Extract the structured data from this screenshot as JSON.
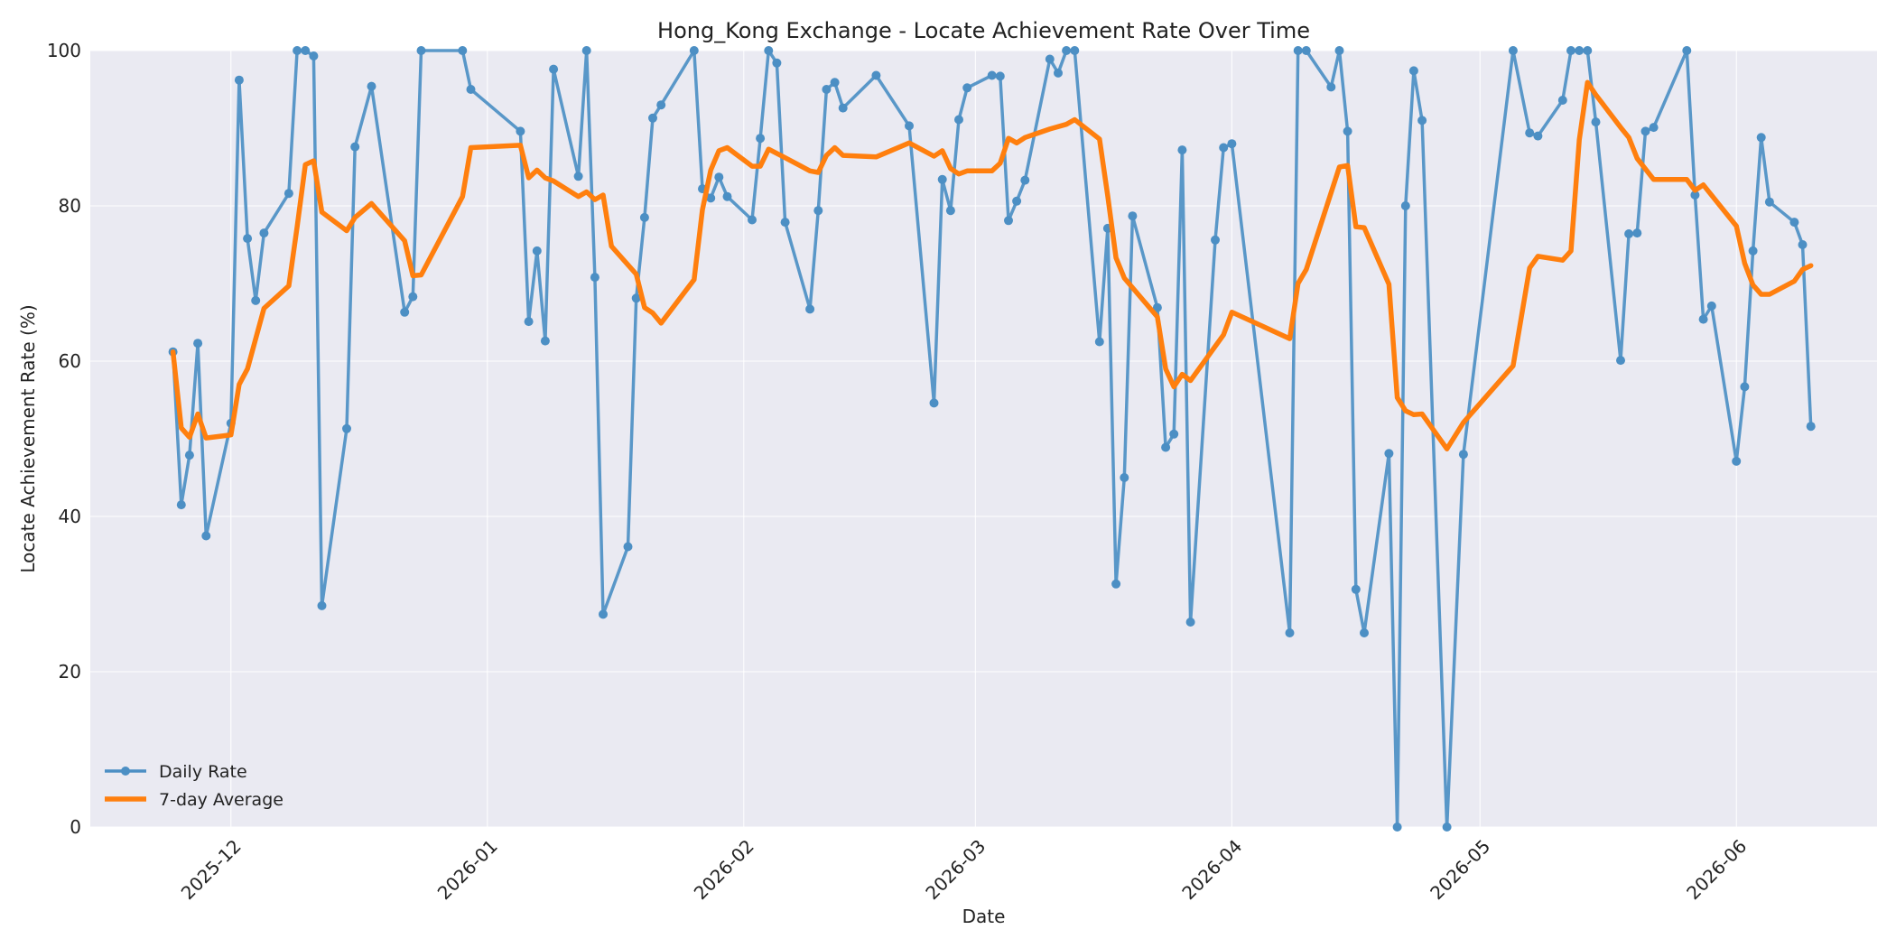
{
  "chart_data": {
    "type": "line",
    "title": "Hong_Kong Exchange - Locate Achievement Rate Over Time",
    "xlabel": "Date",
    "ylabel": "Locate Achievement Rate (%)",
    "xlim": [
      "2025-11-14",
      "2026-06-18"
    ],
    "ylim": [
      0,
      100
    ],
    "grid": true,
    "legend_position": "bottom-left",
    "x_ticks": [
      "2025-12",
      "2026-01",
      "2026-02",
      "2026-03",
      "2026-04",
      "2026-05",
      "2026-06"
    ],
    "y_ticks": [
      0,
      20,
      40,
      60,
      80,
      100
    ],
    "series": [
      {
        "name": "Daily Rate",
        "color": "#4c8fc4",
        "marker": "circle",
        "points": [
          [
            "2025-11-24",
            61.2
          ],
          [
            "2025-11-25",
            41.5
          ],
          [
            "2025-11-26",
            47.9
          ],
          [
            "2025-11-27",
            62.3
          ],
          [
            "2025-11-28",
            37.5
          ],
          [
            "2025-12-01",
            52.0
          ],
          [
            "2025-12-02",
            96.2
          ],
          [
            "2025-12-03",
            75.8
          ],
          [
            "2025-12-04",
            67.8
          ],
          [
            "2025-12-05",
            76.5
          ],
          [
            "2025-12-08",
            81.6
          ],
          [
            "2025-12-09",
            100.0
          ],
          [
            "2025-12-10",
            100.0
          ],
          [
            "2025-12-11",
            99.3
          ],
          [
            "2025-12-12",
            28.5
          ],
          [
            "2025-12-15",
            51.3
          ],
          [
            "2025-12-16",
            87.6
          ],
          [
            "2025-12-18",
            95.4
          ],
          [
            "2025-12-22",
            66.3
          ],
          [
            "2025-12-23",
            68.3
          ],
          [
            "2025-12-24",
            100.0
          ],
          [
            "2025-12-29",
            100.0
          ],
          [
            "2025-12-30",
            95.0
          ],
          [
            "2026-01-05",
            89.6
          ],
          [
            "2026-01-06",
            65.1
          ],
          [
            "2026-01-07",
            74.2
          ],
          [
            "2026-01-08",
            62.6
          ],
          [
            "2026-01-09",
            97.6
          ],
          [
            "2026-01-12",
            83.8
          ],
          [
            "2026-01-13",
            100.0
          ],
          [
            "2026-01-14",
            70.8
          ],
          [
            "2026-01-15",
            27.4
          ],
          [
            "2026-01-18",
            36.1
          ],
          [
            "2026-01-19",
            68.1
          ],
          [
            "2026-01-20",
            78.5
          ],
          [
            "2026-01-21",
            91.3
          ],
          [
            "2026-01-22",
            93.0
          ],
          [
            "2026-01-26",
            100.0
          ],
          [
            "2026-01-27",
            82.2
          ],
          [
            "2026-01-28",
            81.0
          ],
          [
            "2026-01-29",
            83.7
          ],
          [
            "2026-01-30",
            81.2
          ],
          [
            "2026-02-02",
            78.2
          ],
          [
            "2026-02-03",
            88.7
          ],
          [
            "2026-02-04",
            100.0
          ],
          [
            "2026-02-05",
            98.4
          ],
          [
            "2026-02-06",
            77.9
          ],
          [
            "2026-02-09",
            66.7
          ],
          [
            "2026-02-10",
            79.4
          ],
          [
            "2026-02-11",
            95.0
          ],
          [
            "2026-02-12",
            95.9
          ],
          [
            "2026-02-13",
            92.6
          ],
          [
            "2026-02-17",
            96.8
          ],
          [
            "2026-02-21",
            90.3
          ],
          [
            "2026-02-24",
            54.6
          ],
          [
            "2026-02-25",
            83.4
          ],
          [
            "2026-02-26",
            79.4
          ],
          [
            "2026-02-27",
            91.1
          ],
          [
            "2026-02-28",
            95.2
          ],
          [
            "2026-03-03",
            96.8
          ],
          [
            "2026-03-04",
            96.7
          ],
          [
            "2026-03-05",
            78.1
          ],
          [
            "2026-03-06",
            80.6
          ],
          [
            "2026-03-07",
            83.3
          ],
          [
            "2026-03-10",
            98.9
          ],
          [
            "2026-03-11",
            97.1
          ],
          [
            "2026-03-12",
            100.0
          ],
          [
            "2026-03-13",
            100.0
          ],
          [
            "2026-03-16",
            62.5
          ],
          [
            "2026-03-17",
            77.1
          ],
          [
            "2026-03-18",
            31.3
          ],
          [
            "2026-03-19",
            45.0
          ],
          [
            "2026-03-20",
            78.7
          ],
          [
            "2026-03-23",
            66.9
          ],
          [
            "2026-03-24",
            48.9
          ],
          [
            "2026-03-25",
            50.6
          ],
          [
            "2026-03-26",
            87.2
          ],
          [
            "2026-03-27",
            26.4
          ],
          [
            "2026-03-30",
            75.6
          ],
          [
            "2026-03-31",
            87.5
          ],
          [
            "2026-04-01",
            88.0
          ],
          [
            "2026-04-08",
            25.0
          ],
          [
            "2026-04-09",
            100.0
          ],
          [
            "2026-04-10",
            100.0
          ],
          [
            "2026-04-13",
            95.3
          ],
          [
            "2026-04-14",
            100.0
          ],
          [
            "2026-04-15",
            89.6
          ],
          [
            "2026-04-16",
            30.6
          ],
          [
            "2026-04-17",
            25.0
          ],
          [
            "2026-04-20",
            48.1
          ],
          [
            "2026-04-21",
            0.0
          ],
          [
            "2026-04-22",
            80.0
          ],
          [
            "2026-04-23",
            97.4
          ],
          [
            "2026-04-24",
            91.0
          ],
          [
            "2026-04-27",
            0.0
          ],
          [
            "2026-04-29",
            48.0
          ],
          [
            "2026-05-05",
            100.0
          ],
          [
            "2026-05-07",
            89.4
          ],
          [
            "2026-05-08",
            89.0
          ],
          [
            "2026-05-11",
            93.6
          ],
          [
            "2026-05-12",
            100.0
          ],
          [
            "2026-05-13",
            100.0
          ],
          [
            "2026-05-14",
            100.0
          ],
          [
            "2026-05-15",
            90.8
          ],
          [
            "2026-05-18",
            60.1
          ],
          [
            "2026-05-19",
            76.4
          ],
          [
            "2026-05-20",
            76.5
          ],
          [
            "2026-05-21",
            89.6
          ],
          [
            "2026-05-22",
            90.1
          ],
          [
            "2026-05-26",
            100.0
          ],
          [
            "2026-05-27",
            81.4
          ],
          [
            "2026-05-28",
            65.4
          ],
          [
            "2026-05-29",
            67.1
          ],
          [
            "2026-06-01",
            47.1
          ],
          [
            "2026-06-02",
            56.7
          ],
          [
            "2026-06-03",
            74.2
          ],
          [
            "2026-06-04",
            88.8
          ],
          [
            "2026-06-05",
            80.5
          ],
          [
            "2026-06-08",
            77.9
          ],
          [
            "2026-06-09",
            75.0
          ],
          [
            "2026-06-10",
            51.6
          ]
        ]
      },
      {
        "name": "7-day Average",
        "color": "#ff7f0e",
        "marker": "none",
        "points": [
          [
            "2025-11-24",
            61.2
          ],
          [
            "2025-11-25",
            51.4
          ],
          [
            "2025-11-26",
            50.2
          ],
          [
            "2025-11-27",
            53.2
          ],
          [
            "2025-11-28",
            50.1
          ],
          [
            "2025-12-01",
            50.5
          ],
          [
            "2025-12-02",
            57.0
          ],
          [
            "2025-12-03",
            59.0
          ],
          [
            "2025-12-05",
            66.8
          ],
          [
            "2025-12-08",
            69.7
          ],
          [
            "2025-12-09",
            77.3
          ],
          [
            "2025-12-10",
            85.3
          ],
          [
            "2025-12-11",
            85.8
          ],
          [
            "2025-12-12",
            79.2
          ],
          [
            "2025-12-15",
            76.8
          ],
          [
            "2025-12-16",
            78.5
          ],
          [
            "2025-12-18",
            80.3
          ],
          [
            "2025-12-22",
            75.5
          ],
          [
            "2025-12-23",
            71.0
          ],
          [
            "2025-12-24",
            71.1
          ],
          [
            "2025-12-29",
            81.2
          ],
          [
            "2025-12-30",
            87.5
          ],
          [
            "2026-01-05",
            87.8
          ],
          [
            "2026-01-06",
            83.6
          ],
          [
            "2026-01-07",
            84.6
          ],
          [
            "2026-01-08",
            83.6
          ],
          [
            "2026-01-09",
            83.2
          ],
          [
            "2026-01-12",
            81.2
          ],
          [
            "2026-01-13",
            81.8
          ],
          [
            "2026-01-14",
            80.8
          ],
          [
            "2026-01-15",
            81.4
          ],
          [
            "2026-01-16",
            74.8
          ],
          [
            "2026-01-19",
            71.2
          ],
          [
            "2026-01-20",
            66.9
          ],
          [
            "2026-01-21",
            66.2
          ],
          [
            "2026-01-22",
            64.9
          ],
          [
            "2026-01-26",
            70.5
          ],
          [
            "2026-01-27",
            79.5
          ],
          [
            "2026-01-28",
            84.6
          ],
          [
            "2026-01-29",
            87.1
          ],
          [
            "2026-01-30",
            87.5
          ],
          [
            "2026-02-02",
            85.1
          ],
          [
            "2026-02-03",
            85.1
          ],
          [
            "2026-02-04",
            87.3
          ],
          [
            "2026-02-06",
            86.2
          ],
          [
            "2026-02-09",
            84.5
          ],
          [
            "2026-02-10",
            84.3
          ],
          [
            "2026-02-11",
            86.5
          ],
          [
            "2026-02-12",
            87.5
          ],
          [
            "2026-02-13",
            86.5
          ],
          [
            "2026-02-17",
            86.3
          ],
          [
            "2026-02-21",
            88.1
          ],
          [
            "2026-02-24",
            86.4
          ],
          [
            "2026-02-25",
            87.1
          ],
          [
            "2026-02-26",
            84.8
          ],
          [
            "2026-02-27",
            84.1
          ],
          [
            "2026-02-28",
            84.5
          ],
          [
            "2026-03-03",
            84.5
          ],
          [
            "2026-03-04",
            85.5
          ],
          [
            "2026-03-05",
            88.7
          ],
          [
            "2026-03-06",
            88.1
          ],
          [
            "2026-03-07",
            88.8
          ],
          [
            "2026-03-10",
            89.9
          ],
          [
            "2026-03-12",
            90.5
          ],
          [
            "2026-03-13",
            91.1
          ],
          [
            "2026-03-16",
            88.6
          ],
          [
            "2026-03-17",
            81.3
          ],
          [
            "2026-03-18",
            73.3
          ],
          [
            "2026-03-19",
            70.7
          ],
          [
            "2026-03-23",
            65.7
          ],
          [
            "2026-03-24",
            59.0
          ],
          [
            "2026-03-25",
            56.7
          ],
          [
            "2026-03-26",
            58.3
          ],
          [
            "2026-03-27",
            57.5
          ],
          [
            "2026-03-31",
            63.4
          ],
          [
            "2026-04-01",
            66.3
          ],
          [
            "2026-04-08",
            62.9
          ],
          [
            "2026-04-09",
            70.0
          ],
          [
            "2026-04-10",
            71.8
          ],
          [
            "2026-04-14",
            85.0
          ],
          [
            "2026-04-15",
            85.2
          ],
          [
            "2026-04-16",
            77.3
          ],
          [
            "2026-04-17",
            77.2
          ],
          [
            "2026-04-20",
            69.9
          ],
          [
            "2026-04-21",
            55.3
          ],
          [
            "2026-04-22",
            53.6
          ],
          [
            "2026-04-23",
            53.1
          ],
          [
            "2026-04-24",
            53.2
          ],
          [
            "2026-04-27",
            48.7
          ],
          [
            "2026-04-29",
            52.1
          ],
          [
            "2026-05-05",
            59.4
          ],
          [
            "2026-05-07",
            72.0
          ],
          [
            "2026-05-08",
            73.5
          ],
          [
            "2026-05-11",
            73.0
          ],
          [
            "2026-05-12",
            74.2
          ],
          [
            "2026-05-13",
            88.5
          ],
          [
            "2026-05-14",
            95.9
          ],
          [
            "2026-05-15",
            94.3
          ],
          [
            "2026-05-18",
            90.1
          ],
          [
            "2026-05-19",
            88.8
          ],
          [
            "2026-05-20",
            86.1
          ],
          [
            "2026-05-22",
            83.4
          ],
          [
            "2026-05-26",
            83.4
          ],
          [
            "2026-05-27",
            82.0
          ],
          [
            "2026-05-28",
            82.7
          ],
          [
            "2026-06-01",
            77.4
          ],
          [
            "2026-06-02",
            72.6
          ],
          [
            "2026-06-03",
            69.8
          ],
          [
            "2026-06-04",
            68.6
          ],
          [
            "2026-06-05",
            68.6
          ],
          [
            "2026-06-08",
            70.3
          ],
          [
            "2026-06-09",
            71.8
          ],
          [
            "2026-06-10",
            72.3
          ]
        ]
      }
    ]
  }
}
